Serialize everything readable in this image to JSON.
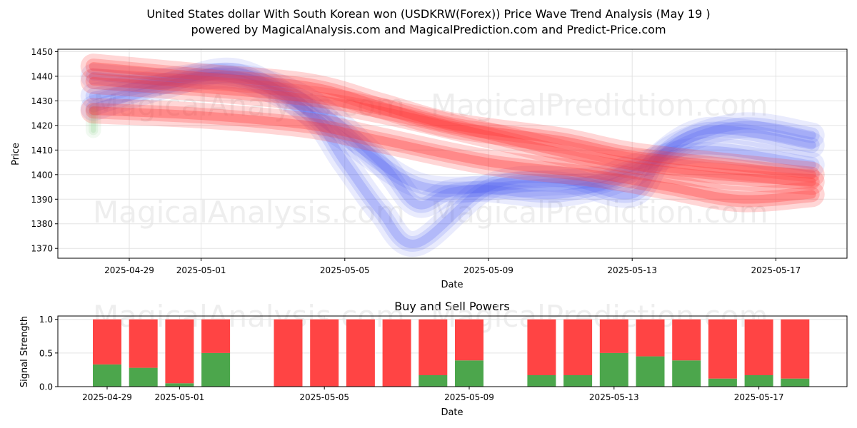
{
  "title": "United States dollar With South Korean won (USDKRW(Forex)) Price Wave Trend Analysis (May 19 )",
  "subtitle": "powered by MagicalAnalysis.com and MagicalPrediction.com and Predict-Price.com",
  "watermarks": [
    "MagicalAnalysis.com",
    "MagicalPrediction.com"
  ],
  "colors": {
    "buy": "#4ca64c",
    "sell": "#ff4444",
    "blue_wave": "#4d5cf0",
    "red_wave": "#ff3333",
    "green_wave": "#8fd18f"
  },
  "chart_data": [
    {
      "type": "area",
      "title": "",
      "xlabel": "Date",
      "ylabel": "Price",
      "x_ticks": [
        "2025-04-29",
        "2025-05-01",
        "2025-05-05",
        "2025-05-09",
        "2025-05-13",
        "2025-05-17"
      ],
      "y_ticks": [
        1370,
        1380,
        1390,
        1400,
        1410,
        1420,
        1430,
        1440,
        1450
      ],
      "xlim": [
        "2025-04-27",
        "2025-05-19"
      ],
      "ylim": [
        1366,
        1451
      ],
      "grid": true,
      "series": [
        {
          "color": "blue",
          "x": [
            "2025-04-28",
            "2025-04-30",
            "2025-05-02",
            "2025-05-04",
            "2025-05-06",
            "2025-05-07",
            "2025-05-08",
            "2025-05-10",
            "2025-05-12",
            "2025-05-13",
            "2025-05-15",
            "2025-05-18"
          ],
          "y": [
            1440,
            1438,
            1440,
            1430,
            1405,
            1388,
            1393,
            1396,
            1398,
            1403,
            1410,
            1404
          ]
        },
        {
          "color": "blue",
          "x": [
            "2025-04-28",
            "2025-04-30",
            "2025-05-02",
            "2025-05-04",
            "2025-05-05",
            "2025-05-06",
            "2025-05-07",
            "2025-05-09",
            "2025-05-11",
            "2025-05-13",
            "2025-05-14",
            "2025-05-16",
            "2025-05-18"
          ],
          "y": [
            1427,
            1436,
            1442,
            1425,
            1405,
            1385,
            1372,
            1395,
            1398,
            1392,
            1410,
            1420,
            1416
          ]
        },
        {
          "color": "blue",
          "x": [
            "2025-04-28",
            "2025-05-01",
            "2025-05-03",
            "2025-05-05",
            "2025-05-07",
            "2025-05-09",
            "2025-05-11",
            "2025-05-13",
            "2025-05-15",
            "2025-05-18"
          ],
          "y": [
            1432,
            1440,
            1434,
            1415,
            1396,
            1394,
            1392,
            1400,
            1418,
            1412
          ]
        },
        {
          "color": "red",
          "x": [
            "2025-04-28",
            "2025-05-01",
            "2025-05-04",
            "2025-05-06",
            "2025-05-08",
            "2025-05-11",
            "2025-05-13",
            "2025-05-16",
            "2025-05-18"
          ],
          "y": [
            1444,
            1440,
            1436,
            1428,
            1420,
            1414,
            1408,
            1403,
            1400
          ]
        },
        {
          "color": "red",
          "x": [
            "2025-04-28",
            "2025-05-01",
            "2025-05-04",
            "2025-05-06",
            "2025-05-09",
            "2025-05-12",
            "2025-05-15",
            "2025-05-18"
          ],
          "y": [
            1438,
            1435,
            1431,
            1426,
            1416,
            1406,
            1400,
            1397
          ]
        },
        {
          "color": "red",
          "x": [
            "2025-04-28",
            "2025-05-01",
            "2025-05-04",
            "2025-05-06",
            "2025-05-09",
            "2025-05-12",
            "2025-05-14",
            "2025-05-16",
            "2025-05-18"
          ],
          "y": [
            1426,
            1424,
            1420,
            1414,
            1405,
            1400,
            1395,
            1390,
            1392
          ]
        },
        {
          "color": "green",
          "x": [
            "2025-04-28",
            "2025-04-28"
          ],
          "y": [
            1418,
            1426
          ]
        }
      ]
    },
    {
      "type": "bar",
      "title": "Buy and Sell Powers",
      "xlabel": "Date",
      "ylabel": "Signal Strength",
      "x_ticks": [
        "2025-04-29",
        "2025-05-01",
        "2025-05-05",
        "2025-05-09",
        "2025-05-13",
        "2025-05-17"
      ],
      "y_ticks": [
        0.0,
        0.5,
        1.0
      ],
      "ylim": [
        0,
        1.05
      ],
      "grid": true,
      "categories": [
        "2025-04-29",
        "2025-04-30",
        "2025-05-01",
        "2025-05-02",
        "2025-05-04",
        "2025-05-05",
        "2025-05-06",
        "2025-05-07",
        "2025-05-08",
        "2025-05-09",
        "2025-05-11",
        "2025-05-12",
        "2025-05-13",
        "2025-05-14",
        "2025-05-15",
        "2025-05-16",
        "2025-05-17",
        "2025-05-18"
      ],
      "series": [
        {
          "name": "Buy",
          "values": [
            0.33,
            0.28,
            0.05,
            0.5,
            0.0,
            0.0,
            0.0,
            0.0,
            0.17,
            0.39,
            0.17,
            0.17,
            0.5,
            0.45,
            0.39,
            0.12,
            0.17,
            0.12
          ]
        },
        {
          "name": "Sell",
          "values": [
            0.67,
            0.72,
            0.95,
            0.5,
            1.0,
            1.0,
            1.0,
            1.0,
            0.83,
            0.61,
            0.83,
            0.83,
            0.5,
            0.55,
            0.61,
            0.88,
            0.83,
            0.88
          ]
        }
      ]
    }
  ]
}
